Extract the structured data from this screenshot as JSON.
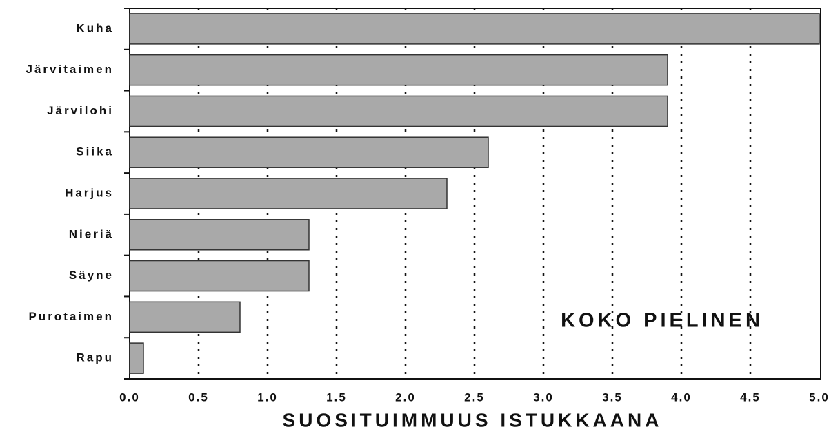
{
  "chart_data": {
    "type": "barh",
    "categories": [
      "Kuha",
      "Järvitaimen",
      "Järvilohi",
      "Siika",
      "Harjus",
      "Nieriä",
      "Säyne",
      "Purotaimen",
      "Rapu"
    ],
    "values": [
      5.0,
      3.9,
      3.9,
      2.6,
      2.3,
      1.3,
      1.3,
      0.8,
      0.1
    ],
    "color": "#a9a9a9",
    "xlim": [
      0,
      5
    ],
    "xticks": [
      {
        "value": 0,
        "label": "0.0"
      },
      {
        "value": 0.5,
        "label": "0.5"
      },
      {
        "value": 1,
        "label": "1.0"
      },
      {
        "value": 1.5,
        "label": "1.5"
      },
      {
        "value": 2,
        "label": "2.0"
      },
      {
        "value": 2.5,
        "label": "2.5"
      },
      {
        "value": 3,
        "label": "3.0"
      },
      {
        "value": 3.5,
        "label": "3.5"
      },
      {
        "value": 4,
        "label": "4.0"
      },
      {
        "value": 4.5,
        "label": "4.5"
      },
      {
        "value": 5,
        "label": "5.0"
      }
    ],
    "xlabel": "SUOSITUIMMUUS ISTUKKAANA",
    "annotation": "KOKO PIELINEN",
    "grid": true
  }
}
